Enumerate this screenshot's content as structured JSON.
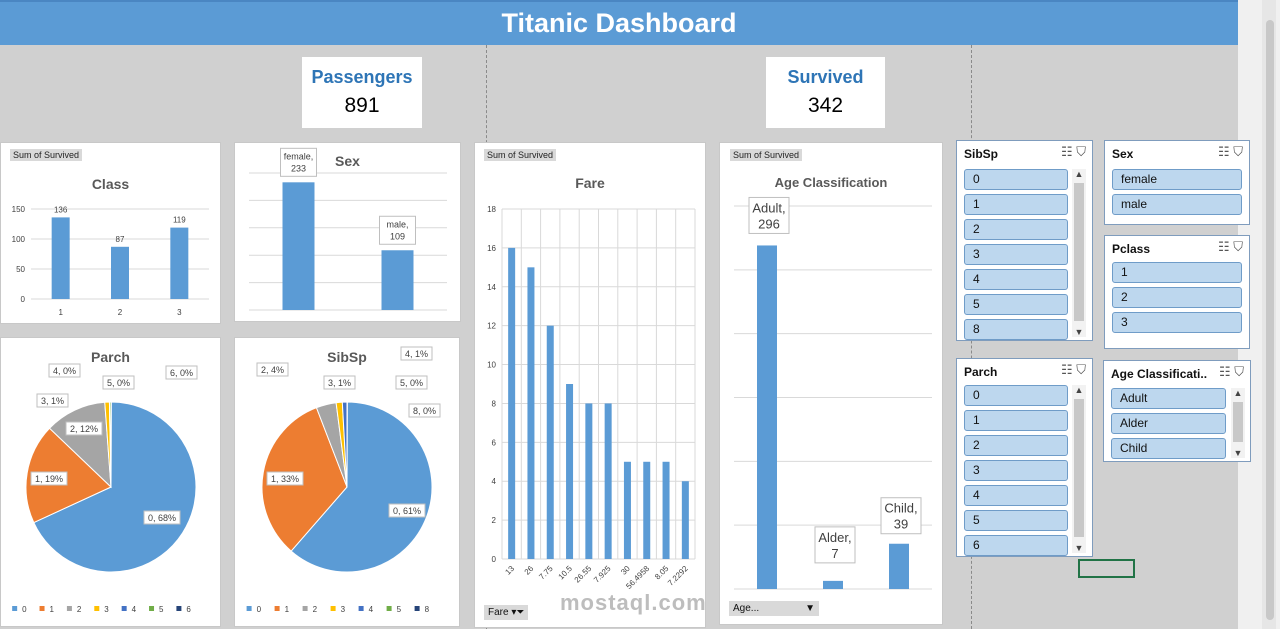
{
  "header": {
    "title": "Titanic Dashboard"
  },
  "kpis": {
    "passengers": {
      "label": "Passengers",
      "value": "891"
    },
    "survived": {
      "label": "Survived",
      "value": "342"
    }
  },
  "tags": {
    "sum_of_survived": "Sum of Survived"
  },
  "colors": {
    "blue": "#5b9bd5",
    "orange": "#ed7d31",
    "gray": "#a5a5a5",
    "yellow": "#ffc000",
    "darkblue": "#4472c4",
    "green": "#70ad47",
    "navy": "#264478"
  },
  "filters": {
    "fare_button": "Fare",
    "age_dropdown": "Age..."
  },
  "chart_data": [
    {
      "id": "class",
      "type": "bar",
      "title": "Class",
      "categories": [
        "1",
        "2",
        "3"
      ],
      "values": [
        136,
        87,
        119
      ],
      "ylim": [
        0,
        150
      ],
      "yticks": [
        "0",
        "50",
        "100",
        "150"
      ],
      "data_labels": [
        "136",
        "87",
        "119"
      ],
      "grid": true
    },
    {
      "id": "sex",
      "type": "bar",
      "title": "Sex",
      "categories": [
        "female",
        "male"
      ],
      "values": [
        233,
        109
      ],
      "ylim": [
        0,
        250
      ],
      "data_labels": [
        "female, 233",
        "male, 109"
      ],
      "grid": true
    },
    {
      "id": "fare",
      "type": "bar",
      "title": "Fare",
      "categories": [
        "13",
        "26",
        "7.75",
        "10.5",
        "26.55",
        "7.925",
        "30",
        "56.4958",
        "8.05",
        "7.2292"
      ],
      "values": [
        16,
        15,
        12,
        9,
        8,
        8,
        5,
        5,
        5,
        4
      ],
      "ylim": [
        0,
        18
      ],
      "yticks": [
        "0",
        "2",
        "4",
        "6",
        "8",
        "10",
        "12",
        "14",
        "16",
        "18"
      ],
      "grid": true
    },
    {
      "id": "age",
      "type": "bar",
      "title": "Age Classification",
      "categories": [
        "Adult",
        "Alder",
        "Child"
      ],
      "values": [
        296,
        7,
        39
      ],
      "ylim": [
        0,
        330
      ],
      "data_labels": [
        "Adult, 296",
        "Alder, 7",
        "Child, 39"
      ],
      "grid": true
    },
    {
      "id": "parch",
      "type": "pie",
      "title": "Parch",
      "labels": [
        "0",
        "1",
        "2",
        "3",
        "4",
        "5",
        "6"
      ],
      "values": [
        233,
        65,
        40,
        3,
        0,
        1,
        0
      ],
      "data_labels": [
        "0, 68%",
        "1, 19%",
        "2, 12%",
        "3, 1%",
        "4, 0%",
        "5, 0%",
        "6, 0%"
      ],
      "legend": "bottom"
    },
    {
      "id": "sibsp",
      "type": "pie",
      "title": "SibSp",
      "labels": [
        "0",
        "1",
        "2",
        "3",
        "4",
        "5",
        "8"
      ],
      "values": [
        210,
        112,
        13,
        4,
        3,
        0,
        0
      ],
      "data_labels": [
        "0, 61%",
        "1, 33%",
        "2, 4%",
        "3, 1%",
        "4, 1%",
        "5, 0%",
        "8, 0%"
      ],
      "legend": "bottom"
    }
  ],
  "slicers": {
    "sibsp": {
      "title": "SibSp",
      "items": [
        "0",
        "1",
        "2",
        "3",
        "4",
        "5",
        "8"
      ]
    },
    "sex": {
      "title": "Sex",
      "items": [
        "female",
        "male"
      ]
    },
    "pclass": {
      "title": "Pclass",
      "items": [
        "1",
        "2",
        "3"
      ]
    },
    "parch": {
      "title": "Parch",
      "items": [
        "0",
        "1",
        "2",
        "3",
        "4",
        "5",
        "6"
      ]
    },
    "age": {
      "title": "Age Classificati...",
      "items": [
        "Adult",
        "Alder",
        "Child"
      ]
    }
  },
  "watermark": "mostaql.com"
}
